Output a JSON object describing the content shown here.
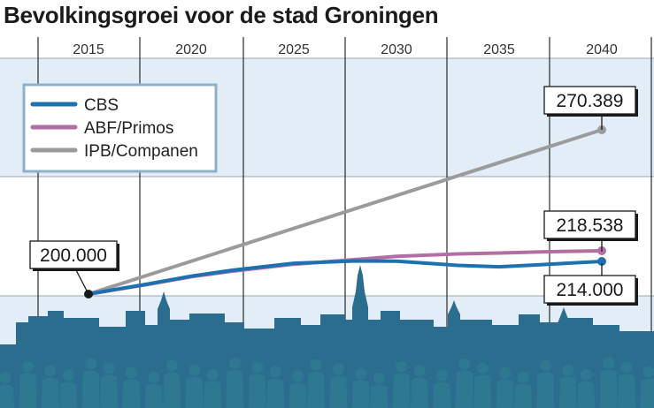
{
  "title": "Bevolkingsgroei voor de stad Groningen",
  "colors": {
    "cbs": "#1d71b0",
    "abf": "#b46ea6",
    "ipb": "#9b9b9b",
    "band": "#e2edf8",
    "skyline": "#2a6d8e",
    "people": "#2f7892"
  },
  "chart_data": {
    "type": "line",
    "title": "Bevolkingsgroei voor de stad Groningen",
    "x_ticks": [
      "2015",
      "2020",
      "2025",
      "2030",
      "2035",
      "2040"
    ],
    "xlim": [
      2015,
      2040
    ],
    "ylim": [
      188000,
      280000
    ],
    "grid": true,
    "legend_position": "top-left",
    "series": [
      {
        "name": "CBS",
        "color": "#1d71b0",
        "x": [
          2015,
          2018,
          2020,
          2022,
          2025,
          2028,
          2030,
          2033,
          2035,
          2037,
          2040
        ],
        "y": [
          200000,
          204500,
          207700,
          210200,
          213200,
          214200,
          214100,
          212300,
          211700,
          212600,
          214000
        ]
      },
      {
        "name": "ABF/Primos",
        "color": "#b46ea6",
        "x": [
          2015,
          2018,
          2020,
          2022,
          2025,
          2028,
          2030,
          2033,
          2035,
          2037,
          2040
        ],
        "y": [
          200000,
          204300,
          207400,
          209800,
          212800,
          214800,
          216200,
          217200,
          217600,
          218100,
          218538
        ]
      },
      {
        "name": "IPB/Companen",
        "color": "#9b9b9b",
        "x": [
          2015,
          2040
        ],
        "y": [
          200000,
          270389
        ]
      }
    ],
    "annotations": [
      {
        "label": "200.000",
        "x": 2015,
        "y": 200000
      },
      {
        "label": "270.389",
        "x": 2040,
        "y": 270389
      },
      {
        "label": "218.538",
        "x": 2040,
        "y": 218538
      },
      {
        "label": "214.000",
        "x": 2040,
        "y": 214000
      }
    ]
  }
}
